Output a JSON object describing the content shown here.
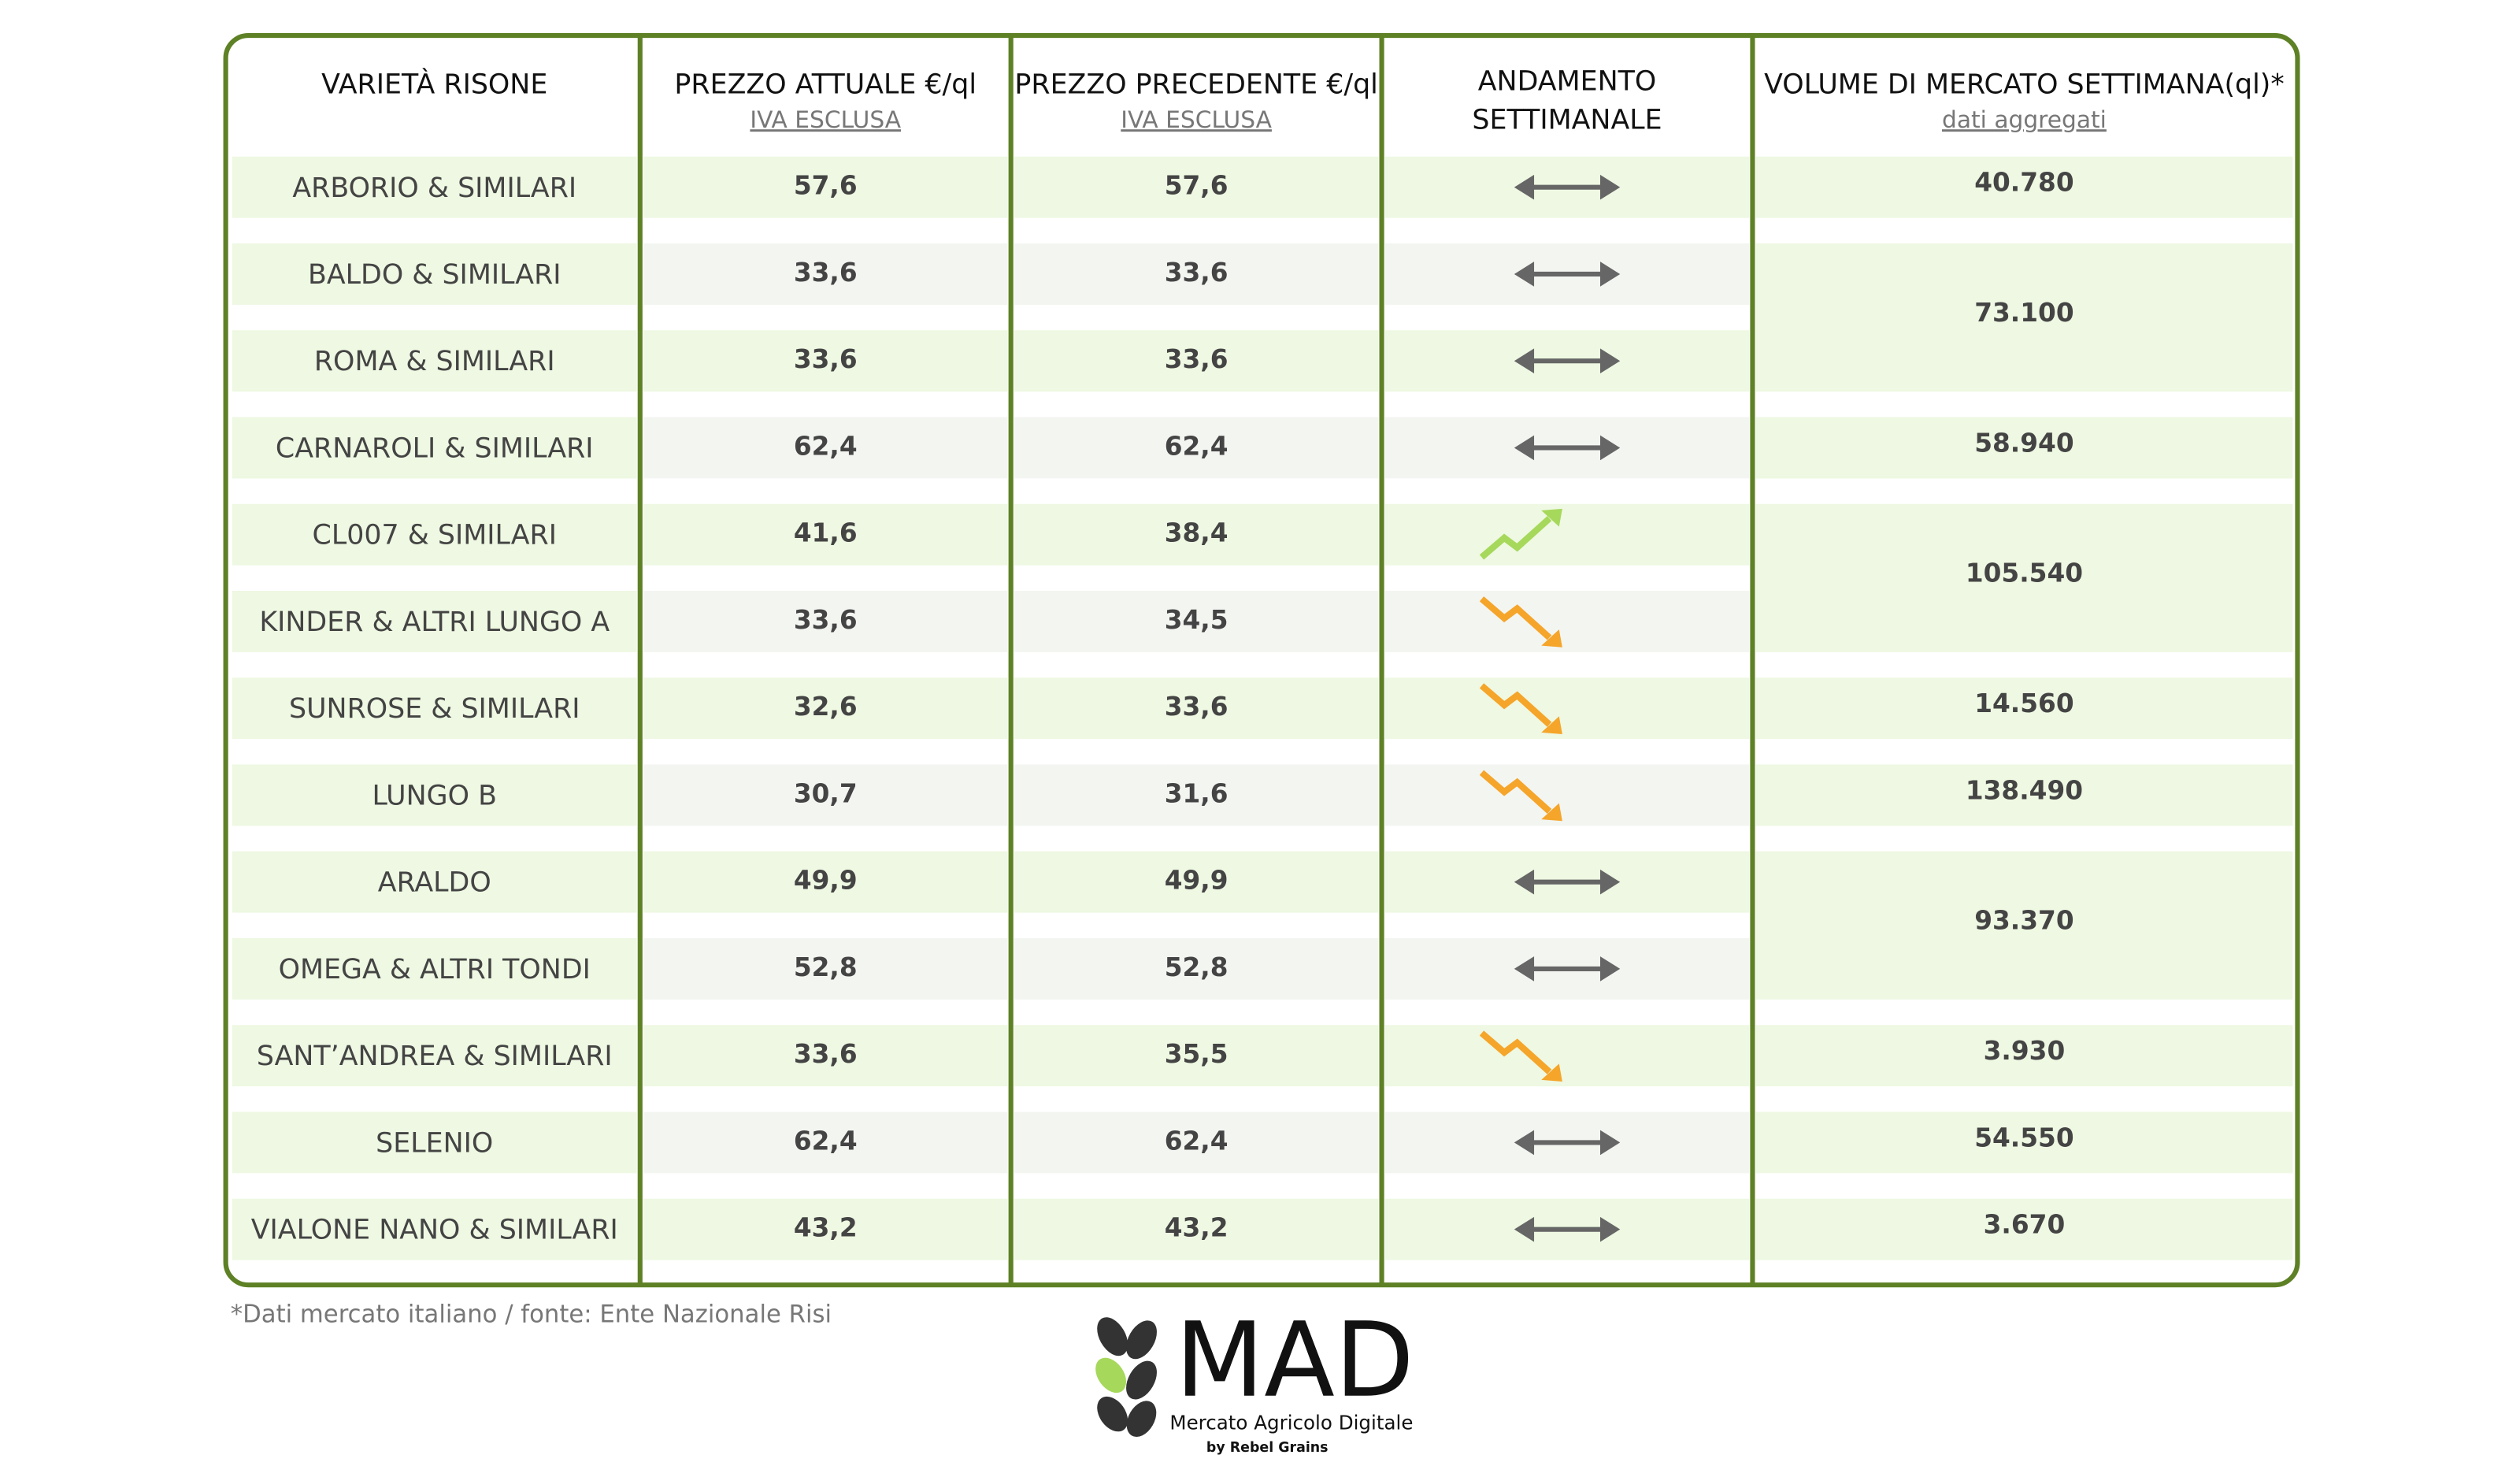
{
  "table": {
    "header": [
      {
        "lines": [
          "VARIETÀ RISONE"
        ]
      },
      {
        "lines": [
          "PREZZO ATTUALE €/ql"
        ],
        "note": "IVA ESCLUSA"
      },
      {
        "lines": [
          "PREZZO PRECEDENTE €/ql"
        ],
        "note": "IVA ESCLUSA"
      },
      {
        "lines": [
          "ANDAMENTO",
          "SETTIMANALE"
        ]
      },
      {
        "lines": [
          "VOLUME DI MERCATO SETTIMANA(ql)*"
        ],
        "note": "dati aggregati"
      }
    ],
    "rows": [
      {
        "variety": "ARBORIO & SIMILARI",
        "current": "57,6",
        "previous": "57,6",
        "trend": "flat"
      },
      {
        "variety": "BALDO & SIMILARI",
        "current": "33,6",
        "previous": "33,6",
        "trend": "flat"
      },
      {
        "variety": "ROMA & SIMILARI",
        "current": "33,6",
        "previous": "33,6",
        "trend": "flat"
      },
      {
        "variety": "CARNAROLI & SIMILARI",
        "current": "62,4",
        "previous": "62,4",
        "trend": "flat"
      },
      {
        "variety": "CL007 & SIMILARI",
        "current": "41,6",
        "previous": "38,4",
        "trend": "up"
      },
      {
        "variety": "KINDER & ALTRI LUNGO A",
        "current": "33,6",
        "previous": "34,5",
        "trend": "down"
      },
      {
        "variety": "SUNROSE & SIMILARI",
        "current": "32,6",
        "previous": "33,6",
        "trend": "down"
      },
      {
        "variety": "LUNGO B",
        "current": "30,7",
        "previous": "31,6",
        "trend": "down"
      },
      {
        "variety": "ARALDO",
        "current": "49,9",
        "previous": "49,9",
        "trend": "flat"
      },
      {
        "variety": "OMEGA & ALTRI TONDI",
        "current": "52,8",
        "previous": "52,8",
        "trend": "flat"
      },
      {
        "variety": "SANT’ANDREA & SIMILARI",
        "current": "33,6",
        "previous": "35,5",
        "trend": "down"
      },
      {
        "variety": "SELENIO",
        "current": "62,4",
        "previous": "62,4",
        "trend": "flat"
      },
      {
        "variety": "VIALONE NANO & SIMILARI",
        "current": "43,2",
        "previous": "43,2",
        "trend": "flat"
      }
    ],
    "volumes": [
      {
        "value": "40.780",
        "rows": 1
      },
      {
        "value": "73.100",
        "rows": 2
      },
      {
        "value": "58.940",
        "rows": 1
      },
      {
        "value": "105.540",
        "rows": 2
      },
      {
        "value": "14.560",
        "rows": 1
      },
      {
        "value": "138.490",
        "rows": 1
      },
      {
        "value": "93.370",
        "rows": 2
      },
      {
        "value": "3.930",
        "rows": 1
      },
      {
        "value": "54.550",
        "rows": 1
      },
      {
        "value": "3.670",
        "rows": 1
      }
    ]
  },
  "footnote": "*Dati mercato italiano / fonte: Ente Nazionale Risi",
  "logo": {
    "name": "MAD",
    "tagline": "Mercato Agricolo Digitale",
    "by": "by Rebel Grains"
  }
}
